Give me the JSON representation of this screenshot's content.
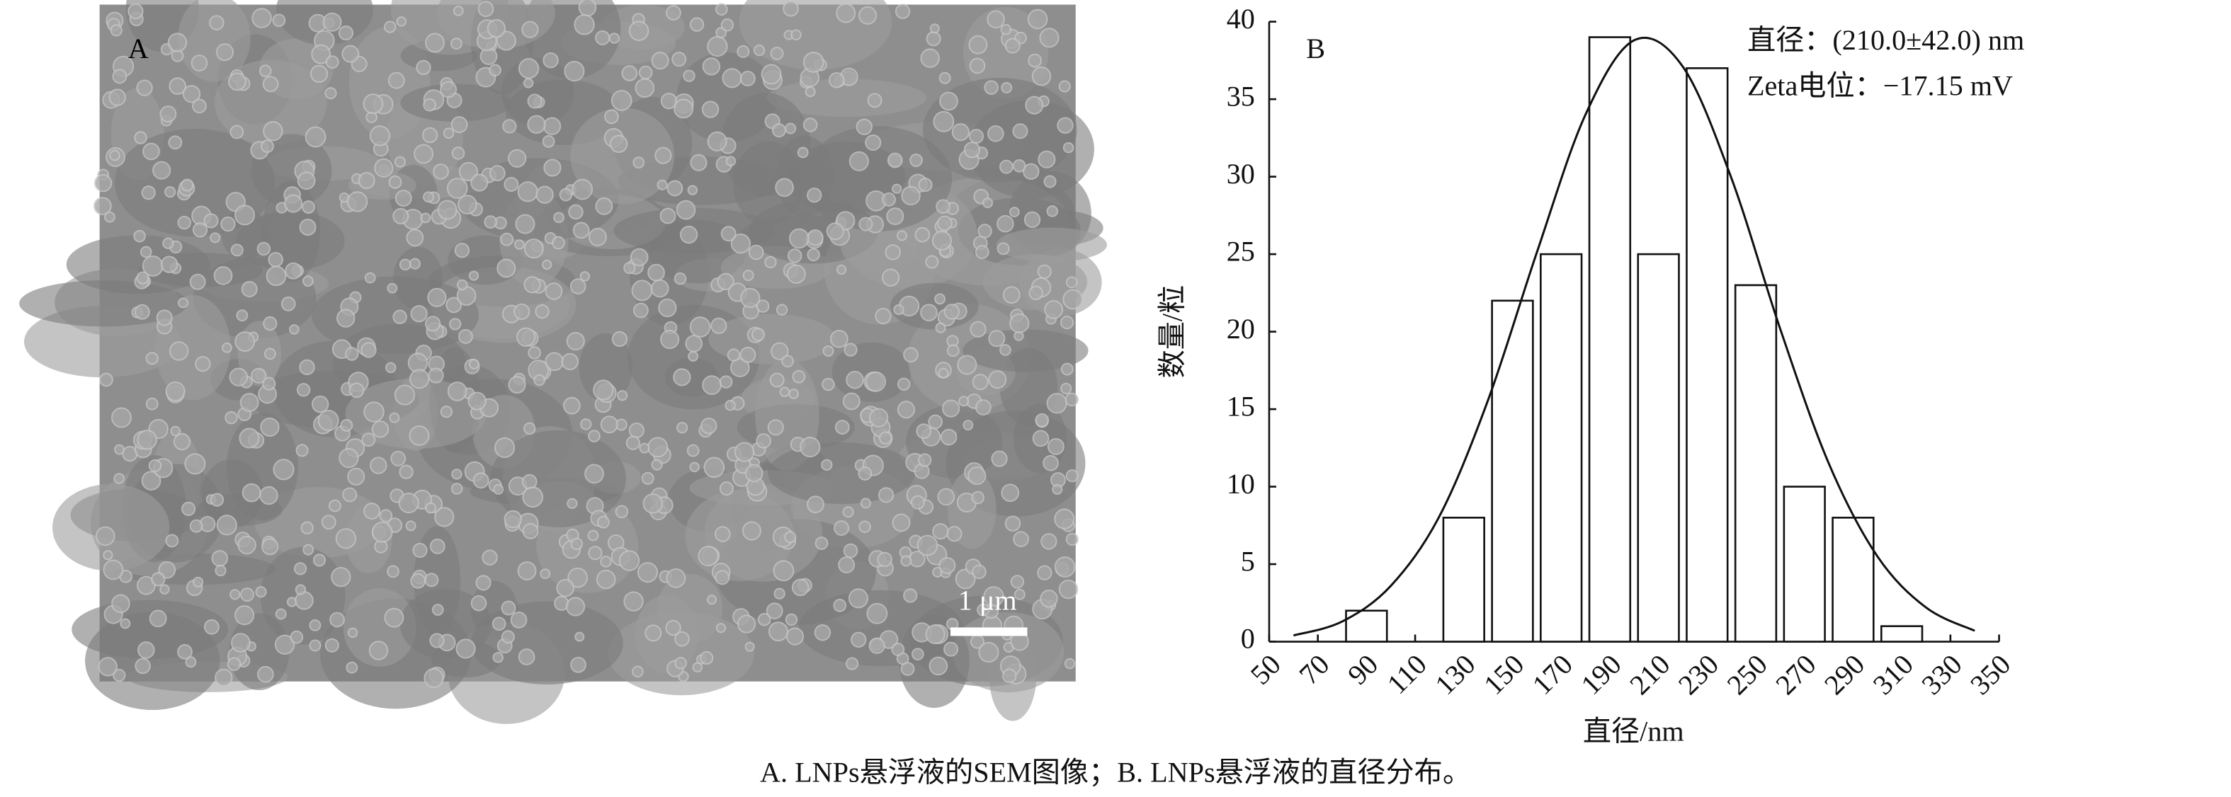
{
  "panel_a": {
    "label": "A",
    "scale_bar": "1 μm"
  },
  "chart_data": {
    "type": "bar",
    "panel_label": "B",
    "xlabel": "直径/nm",
    "ylabel": "数量/粒",
    "annotations": [
      "直径：(210.0±42.0) nm",
      "Zeta电位：−17.15 mV"
    ],
    "x": [
      90,
      130,
      150,
      170,
      190,
      210,
      230,
      250,
      270,
      290,
      310
    ],
    "values": [
      2,
      8,
      22,
      25,
      39,
      25,
      37,
      23,
      10,
      8,
      1
    ],
    "color": "#ffffff",
    "fit": {
      "x": [
        60,
        80,
        100,
        120,
        140,
        160,
        180,
        200,
        220,
        240,
        260,
        280,
        300,
        320,
        340
      ],
      "values": [
        0.4,
        1.3,
        3.6,
        8.1,
        15.6,
        25.1,
        34.0,
        38.8,
        37.1,
        29.9,
        20.2,
        11.5,
        5.5,
        2.2,
        0.7
      ]
    },
    "xlim": [
      50,
      350
    ],
    "ylim": [
      0,
      40
    ],
    "xticks": [
      50,
      70,
      90,
      110,
      130,
      150,
      170,
      190,
      210,
      230,
      250,
      270,
      290,
      310,
      330,
      350
    ],
    "yticks": [
      0,
      5,
      10,
      15,
      20,
      25,
      30,
      35,
      40
    ]
  },
  "caption": "A. LNPs悬浮液的SEM图像；B. LNPs悬浮液的直径分布。"
}
